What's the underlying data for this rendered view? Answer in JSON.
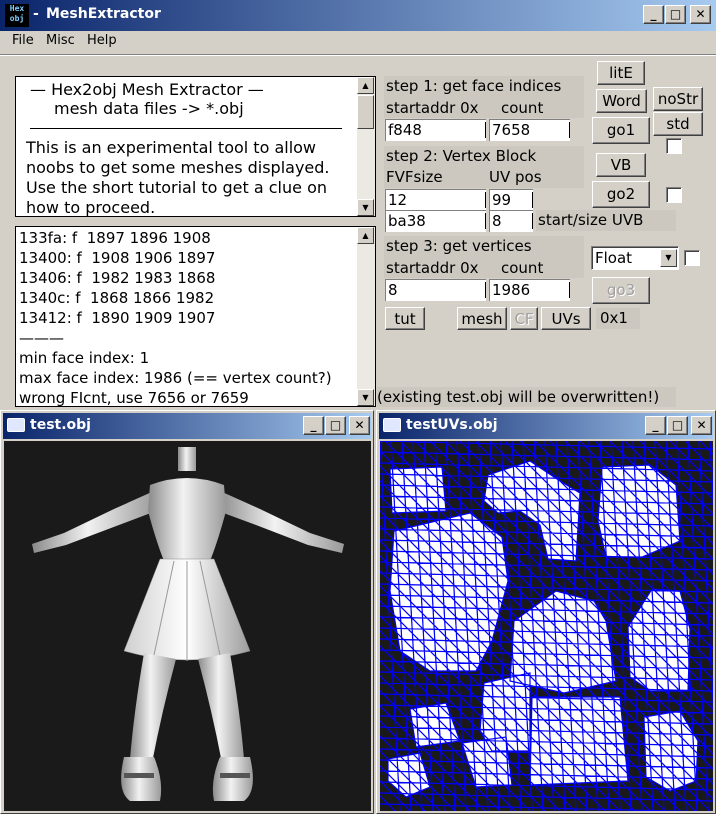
{
  "main_window": {
    "title": "MeshExtractor",
    "title_prefix": "- ",
    "icon_text_top": "Hex",
    "icon_text_bottom": "obj",
    "min_label": "_",
    "max_label": "□",
    "close_label": "✕"
  },
  "menu": {
    "file": "File",
    "misc": "Misc",
    "help": "Help"
  },
  "info_panel": {
    "line1": "—   Hex2obj Mesh Extractor   —",
    "line2": "mesh data files -> *.obj",
    "line3": "This is an experimental tool to allow",
    "line4": "noobs to get some meshes displayed.",
    "line5": "Use the short tutorial to get a clue on",
    "line6": "how to proceed."
  },
  "log_panel": {
    "lines": [
      "133fa: f  1897 1896 1908",
      "13400: f  1908 1906 1897",
      "13406: f  1982 1983 1868",
      "1340c: f  1868 1866 1982",
      "13412: f  1890 1909 1907",
      "———",
      "min face index: 1",
      "max face index: 1986 (== vertex count?)",
      "wrong FIcnt, use 7656 or 7659"
    ]
  },
  "step1": {
    "title": "step 1: get face indices",
    "addr_label": "startaddr 0x",
    "count_label": "count",
    "addr_value": "f848",
    "count_value": "7658"
  },
  "step2": {
    "title": "step 2: Vertex Block",
    "fvf_label": "FVFsize",
    "uv_label": "UV pos",
    "fvf_value": "12",
    "uv_value": "99",
    "uvb_start_value": "ba38",
    "uvb_size_value": "8",
    "uvb_label": "start/size UVB"
  },
  "step3": {
    "title": "step 3: get vertices",
    "addr_label": "startaddr 0x",
    "count_label": "count",
    "addr_value": "8",
    "count_value": "1986",
    "format_value": "Float"
  },
  "buttons": {
    "lite": "litE",
    "word": "Word",
    "nostr": "noStr",
    "std": "std",
    "go1": "go1",
    "vb": "VB",
    "go2": "go2",
    "go3": "go3",
    "tut": "tut",
    "mesh": "mesh",
    "cf": "CF",
    "uvs": "UVs",
    "uv_scale": "0x1"
  },
  "status": {
    "overwrite_note": "(existing test.obj will be overwritten!)"
  },
  "child_windows": {
    "mesh_title": "test.obj",
    "uv_title": "testUVs.obj"
  },
  "colors": {
    "titlebar_start": "#0a246a",
    "titlebar_end": "#a6caf0",
    "face": "#d4d0c8",
    "viewport_bg": "#1a1a1a",
    "uv_wire": "#0000ff"
  }
}
